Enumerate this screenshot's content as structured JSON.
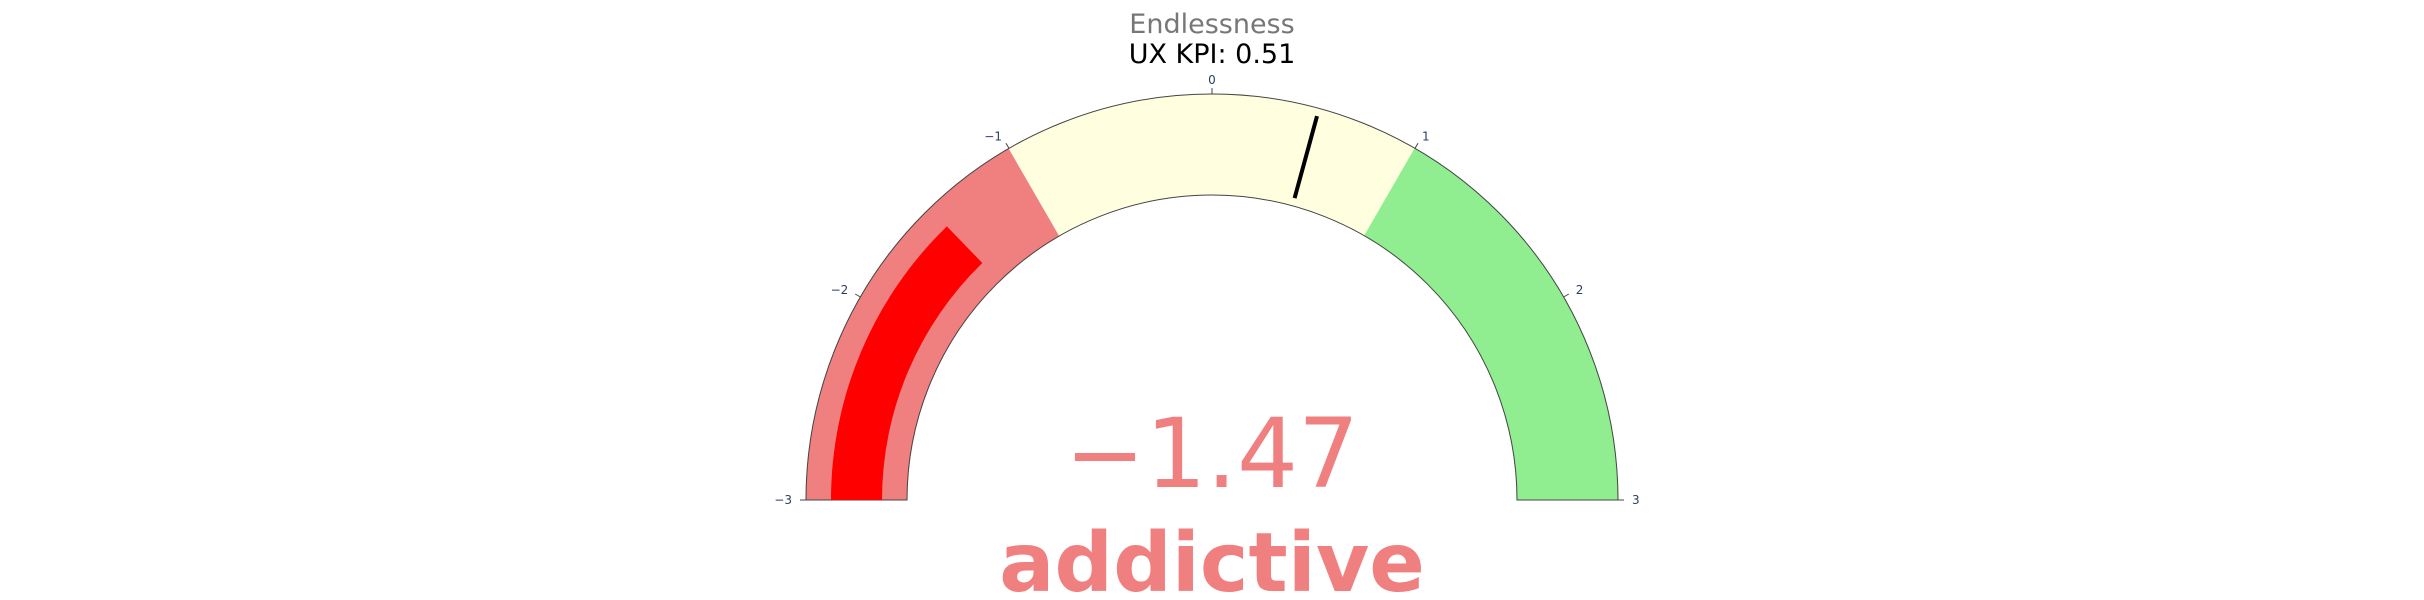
{
  "chart_data": {
    "type": "gauge",
    "title": "Endlessness",
    "kpi_label": "UX KPI: 0.51",
    "value": -1.47,
    "value_display": "−1.47",
    "value_label": "addictive",
    "range": [
      -3,
      3
    ],
    "tick_values": [
      -3,
      -2,
      -1,
      0,
      1,
      2,
      3
    ],
    "tick_labels": [
      "−3",
      "−2",
      "−1",
      "0",
      "1",
      "2",
      "3"
    ],
    "threshold": 0.51,
    "steps": [
      {
        "range": [
          -3,
          -1
        ],
        "color": "#f08080"
      },
      {
        "range": [
          -1,
          0.51
        ],
        "color": "#ffffe0"
      },
      {
        "range": [
          0.51,
          1
        ],
        "color": "#ffffe0"
      },
      {
        "range": [
          1,
          3
        ],
        "color": "#90ee90"
      }
    ],
    "bar_color": "#ff0000",
    "value_color": "#f08080",
    "threshold_color": "#000000"
  }
}
